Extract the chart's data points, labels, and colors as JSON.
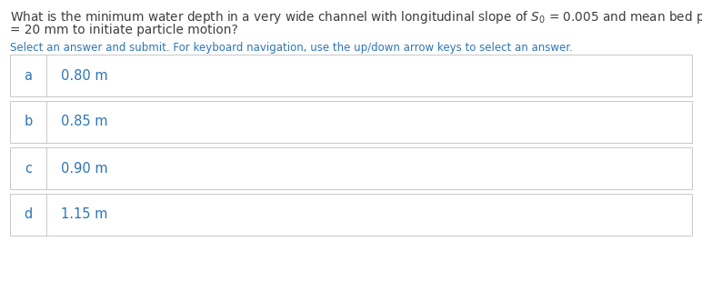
{
  "question_part1": "What is the minimum water depth in a very wide channel with longitudinal slope of $S_0$ = 0.005 and mean bed particle diameter of $d$",
  "question_line2": "= 20 mm to initiate particle motion?",
  "instruction": "Select an answer and submit. For keyboard navigation, use the up/down arrow keys to select an answer.",
  "options": [
    {
      "label": "a",
      "text": "0.80 m"
    },
    {
      "label": "b",
      "text": "0.85 m"
    },
    {
      "label": "c",
      "text": "0.90 m"
    },
    {
      "label": "d",
      "text": "1.15 m"
    }
  ],
  "bg_color": "#ffffff",
  "text_color": "#3d3d3d",
  "label_color": "#2e75b6",
  "answer_color": "#2e75b6",
  "instruction_color": "#2e75b6",
  "border_color": "#c8c8c8",
  "box_bg": "#ffffff",
  "q_fontsize": 9.8,
  "inst_fontsize": 8.5,
  "opt_fontsize": 10.5,
  "fig_w": 7.72,
  "fig_h": 3.32,
  "dpi": 100
}
